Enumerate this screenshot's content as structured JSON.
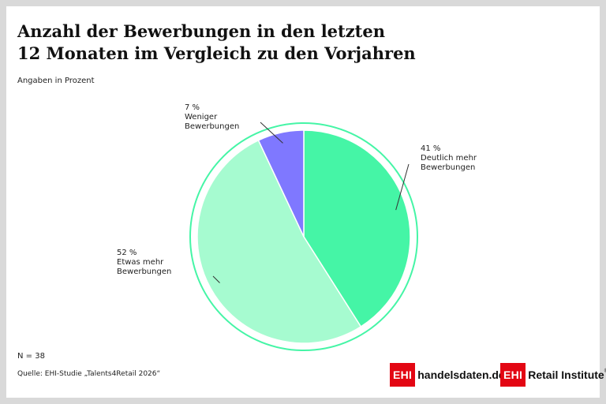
{
  "header": {
    "title_line1": "Anzahl der Bewerbungen in den letzten",
    "title_line2": "12 Monaten im Vergleich zu den Vorjahren",
    "subtitle": "Angaben in Prozent"
  },
  "chart_data": {
    "type": "pie",
    "title": "Anzahl der Bewerbungen in den letzten 12 Monaten im Vergleich zu den Vorjahren",
    "unit": "Prozent",
    "slices": [
      {
        "label": "Deutlich mehr Bewerbungen",
        "value": 41,
        "value_label": "41 %",
        "label_lines": [
          "Deutlich mehr",
          "Bewerbungen"
        ],
        "color": "#45f5a6"
      },
      {
        "label": "Etwas mehr Bewerbungen",
        "value": 52,
        "value_label": "52 %",
        "label_lines": [
          "Etwas mehr",
          "Bewerbungen"
        ],
        "color": "#a6fbd0"
      },
      {
        "label": "Weniger Bewerbungen",
        "value": 7,
        "value_label": "7 %",
        "label_lines": [
          "Weniger",
          "Bewerbungen"
        ],
        "color": "#7f78ff"
      }
    ],
    "ring_color": "#45f5a6"
  },
  "footer": {
    "n": "N = 38",
    "source": "Quelle: EHI-Studie „Talents4Retail 2026“"
  },
  "logos": {
    "logo1_box": "EHI",
    "logo1_text": "handelsdaten.de",
    "logo2_box": "EHI",
    "logo2_text": "Retail Institute",
    "logo2_mark": "®"
  }
}
